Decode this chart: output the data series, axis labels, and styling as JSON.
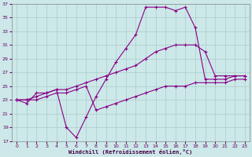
{
  "xlabel": "Windchill (Refroidissement éolien,°C)",
  "bg_color": "#cce8e8",
  "line_color": "#880088",
  "grid_color": "#aacccc",
  "xlim": [
    -0.5,
    23.5
  ],
  "ylim": [
    17,
    37
  ],
  "xticks": [
    0,
    1,
    2,
    3,
    4,
    5,
    6,
    7,
    8,
    9,
    10,
    11,
    12,
    13,
    14,
    15,
    16,
    17,
    18,
    19,
    20,
    21,
    22,
    23
  ],
  "yticks": [
    17,
    19,
    21,
    23,
    25,
    27,
    29,
    31,
    33,
    35,
    37
  ],
  "line1_x": [
    0,
    1,
    2,
    3,
    4,
    5,
    6,
    7,
    8,
    9,
    10,
    11,
    12,
    13,
    14,
    15,
    16,
    17,
    18,
    19,
    20,
    21,
    22,
    23
  ],
  "line1_y": [
    23,
    22.5,
    24,
    24,
    24.5,
    19,
    17.5,
    20.5,
    23.5,
    26,
    28.5,
    30.5,
    32.5,
    36.5,
    36.5,
    36.5,
    36,
    36.5,
    33.5,
    26,
    26,
    26,
    26.5,
    26.5
  ],
  "line2_x": [
    0,
    1,
    2,
    3,
    4,
    5,
    6,
    7,
    8,
    9,
    10,
    11,
    12,
    13,
    14,
    15,
    16,
    17,
    18,
    19,
    20,
    21,
    22,
    23
  ],
  "line2_y": [
    23,
    23,
    23.5,
    24,
    24.5,
    24.5,
    25,
    25.5,
    26,
    26.5,
    27,
    27.5,
    28,
    29,
    30,
    30.5,
    31,
    31,
    31,
    30,
    26.5,
    26.5,
    26.5,
    26.5
  ],
  "line3_x": [
    0,
    1,
    2,
    3,
    4,
    5,
    6,
    7,
    8,
    9,
    10,
    11,
    12,
    13,
    14,
    15,
    16,
    17,
    18,
    19,
    20,
    21,
    22,
    23
  ],
  "line3_y": [
    23,
    23,
    23,
    23.5,
    24,
    24,
    24.5,
    25,
    21.5,
    22,
    22.5,
    23,
    23.5,
    24,
    24.5,
    25,
    25,
    25,
    25.5,
    25.5,
    25.5,
    25.5,
    26,
    26
  ]
}
